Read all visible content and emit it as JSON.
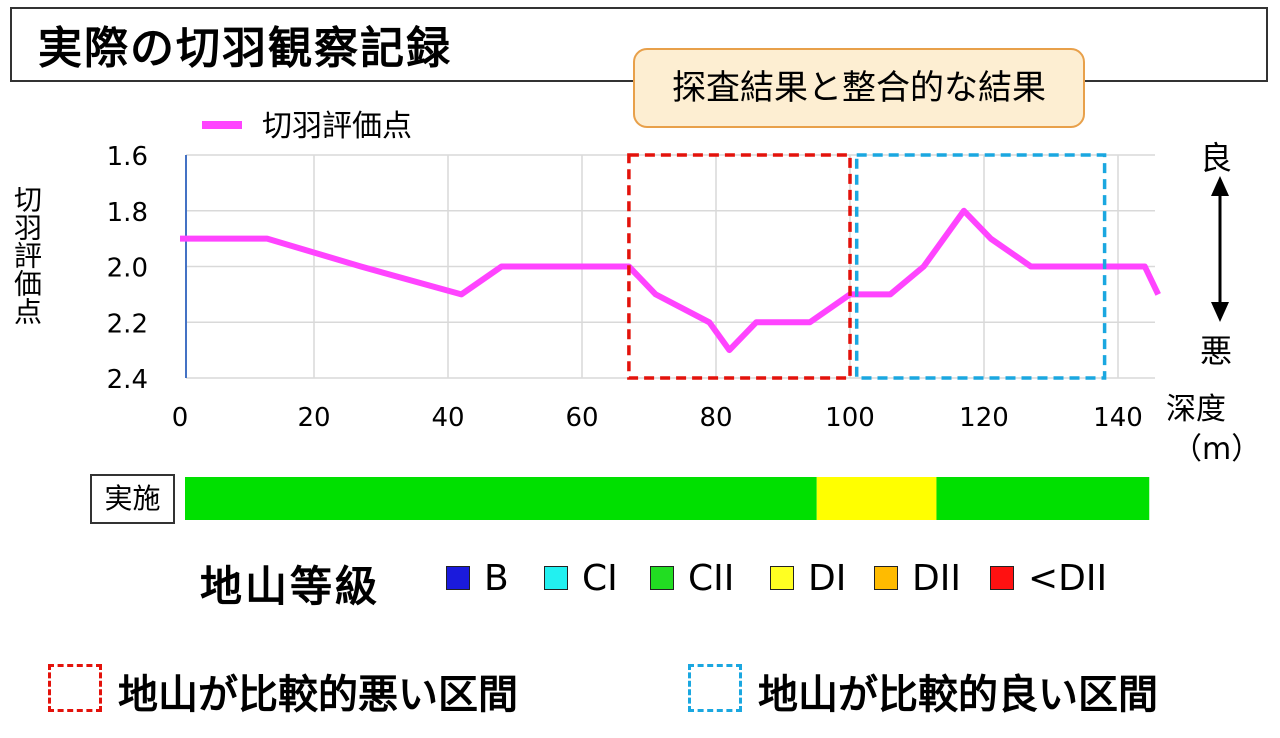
{
  "title": "実際の切羽観察記録",
  "callout": "探査結果と整合的な結果",
  "legend": {
    "series_label": "切羽評価点",
    "series_color": "#ff44ff"
  },
  "axis": {
    "ylabel": "切羽評価点",
    "good": "良",
    "bad": "悪",
    "xlabel": "深度",
    "xunit": "（m）"
  },
  "chart_data": {
    "type": "line",
    "series": [
      {
        "name": "切羽評価点",
        "color": "#ff44ff",
        "points": [
          [
            0,
            1.9
          ],
          [
            13,
            1.9
          ],
          [
            27,
            2.0
          ],
          [
            42,
            2.1
          ],
          [
            48,
            2.0
          ],
          [
            67,
            2.0
          ],
          [
            71,
            2.1
          ],
          [
            79,
            2.2
          ],
          [
            82,
            2.3
          ],
          [
            86,
            2.2
          ],
          [
            94,
            2.2
          ],
          [
            100,
            2.1
          ],
          [
            106,
            2.1
          ],
          [
            111,
            2.0
          ],
          [
            117,
            1.8
          ],
          [
            121,
            1.9
          ],
          [
            127,
            2.0
          ],
          [
            144,
            2.0
          ],
          [
            146,
            2.1
          ]
        ]
      }
    ],
    "xlim": [
      0,
      146
    ],
    "ylim": [
      1.6,
      2.4
    ],
    "y_inverted": true,
    "xticks": [
      0,
      20,
      40,
      60,
      80,
      100,
      120,
      140
    ],
    "yticks": [
      "1.6",
      "1.8",
      "2.0",
      "2.2",
      "2.4"
    ],
    "grid": true,
    "regions": [
      {
        "name": "地山が比較的悪い区間",
        "x": [
          67,
          100
        ],
        "color": "#e3120b"
      },
      {
        "name": "地山が比較的良い区間",
        "x": [
          101,
          138
        ],
        "color": "#1aa7e0"
      }
    ],
    "implementation_bar": {
      "label": "実施",
      "segments": [
        {
          "grade": "CII",
          "x": [
            0,
            95
          ],
          "color": "#00e000"
        },
        {
          "grade": "DI",
          "x": [
            95,
            113
          ],
          "color": "#ffff00"
        },
        {
          "grade": "CII",
          "x": [
            113,
            145
          ],
          "color": "#00e000"
        }
      ]
    }
  },
  "grades": {
    "title": "地山等級",
    "items": [
      {
        "label": "B",
        "color": "#1a1adc"
      },
      {
        "label": "CI",
        "color": "#22f0f0"
      },
      {
        "label": "CII",
        "color": "#22dd22"
      },
      {
        "label": "DI",
        "color": "#ffff22"
      },
      {
        "label": "DII",
        "color": "#ffbb00"
      },
      {
        "label": "<DII",
        "color": "#ff1111"
      }
    ]
  },
  "zones": {
    "bad": {
      "label": "地山が比較的悪い区間",
      "color": "#e3120b"
    },
    "good": {
      "label": "地山が比較的良い区間",
      "color": "#1aa7e0"
    }
  }
}
